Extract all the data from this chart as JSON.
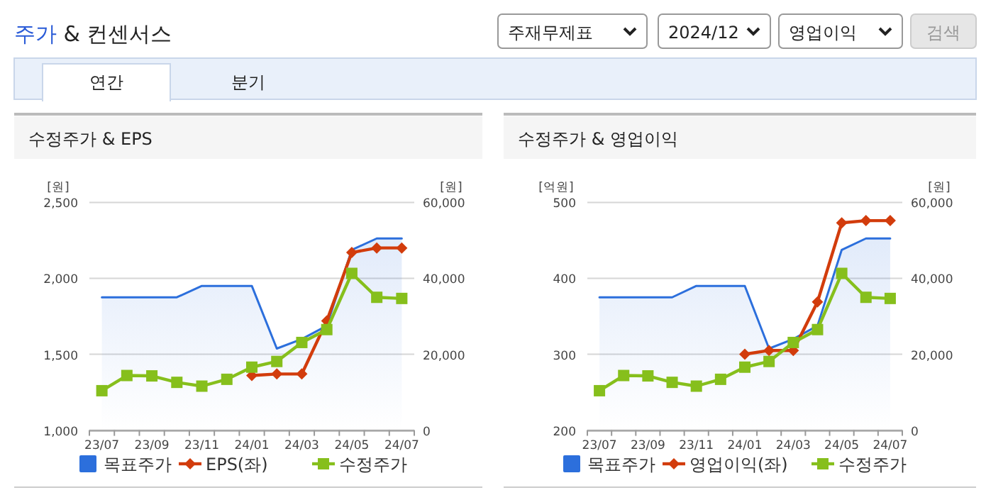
{
  "chart_data": [
    {
      "type": "other",
      "title": "주가 & 컨센서스",
      "annotations": [
        "주재무제표",
        "2024/12",
        "영업이익",
        "검색",
        "연간",
        "분기"
      ]
    },
    {
      "type": "line",
      "title": "수정주가 & EPS",
      "ylabel": "[원]",
      "y2label": "[원]",
      "categories": [
        "23/07",
        null,
        "23/09",
        null,
        "23/11",
        null,
        "24/01",
        null,
        "24/03",
        null,
        "24/05",
        null,
        "24/07"
      ],
      "ylim": [
        1000,
        2500
      ],
      "yticks": [
        {
          "value": 1000,
          "label": "1,000"
        },
        {
          "value": 1500,
          "label": "1,500"
        },
        {
          "value": 2000,
          "label": "2,000"
        },
        {
          "value": 2500,
          "label": "2,500"
        }
      ],
      "y2lim": [
        0,
        60000
      ],
      "y2ticks": [
        0,
        {
          "value": 20000,
          "label": "20,000"
        },
        {
          "value": 40000,
          "label": "40,000"
        },
        {
          "value": 60000,
          "label": "60,000"
        }
      ],
      "grid": "y",
      "legend": "bottom",
      "series": [
        {
          "name": "목표주가",
          "type": "area",
          "axis": "y2",
          "color": "#2c6fdc",
          "marker": "none",
          "values": [
            35000,
            35000,
            35000,
            35000,
            38000,
            38000,
            38000,
            21500,
            24000,
            27500,
            47500,
            50500,
            50500
          ]
        },
        {
          "name": "EPS(좌)",
          "type": "line",
          "axis": "y",
          "color": "#d23c0c",
          "marker": "diamond",
          "values": [
            null,
            null,
            null,
            null,
            null,
            null,
            1360,
            1370,
            1370,
            1720,
            2170,
            2200,
            2200
          ]
        },
        {
          "name": "수정주가",
          "type": "line",
          "axis": "y2",
          "color": "#86bf1c",
          "marker": "square",
          "values": [
            10400,
            14400,
            14300,
            12600,
            11600,
            13400,
            16600,
            18100,
            23100,
            26500,
            41300,
            35000,
            34700
          ]
        }
      ]
    },
    {
      "type": "line",
      "title": "수정주가 & 영업이익",
      "ylabel": "[억원]",
      "y2label": "[원]",
      "categories": [
        "23/07",
        null,
        "23/09",
        null,
        "23/11",
        null,
        "24/01",
        null,
        "24/03",
        null,
        "24/05",
        null,
        "24/07"
      ],
      "ylim": [
        200,
        500
      ],
      "yticks": [
        200,
        300,
        400,
        500
      ],
      "y2lim": [
        0,
        60000
      ],
      "y2ticks": [
        0,
        {
          "value": 20000,
          "label": "20,000"
        },
        {
          "value": 40000,
          "label": "40,000"
        },
        {
          "value": 60000,
          "label": "60,000"
        }
      ],
      "grid": "y",
      "legend": "bottom",
      "series": [
        {
          "name": "목표주가",
          "type": "area",
          "axis": "y2",
          "color": "#2c6fdc",
          "marker": "none",
          "values": [
            35000,
            35000,
            35000,
            35000,
            38000,
            38000,
            38000,
            21500,
            24000,
            27500,
            47500,
            50500,
            50500
          ]
        },
        {
          "name": "영업이익(좌)",
          "type": "line",
          "axis": "y",
          "color": "#d23c0c",
          "marker": "diamond",
          "values": [
            null,
            null,
            null,
            null,
            null,
            null,
            300,
            305,
            305,
            369,
            473,
            476,
            476
          ]
        },
        {
          "name": "수정주가",
          "type": "line",
          "axis": "y2",
          "color": "#86bf1c",
          "marker": "square",
          "values": [
            10400,
            14400,
            14300,
            12600,
            11600,
            13400,
            16600,
            18100,
            23100,
            26500,
            41300,
            35000,
            34700
          ]
        }
      ]
    }
  ]
}
